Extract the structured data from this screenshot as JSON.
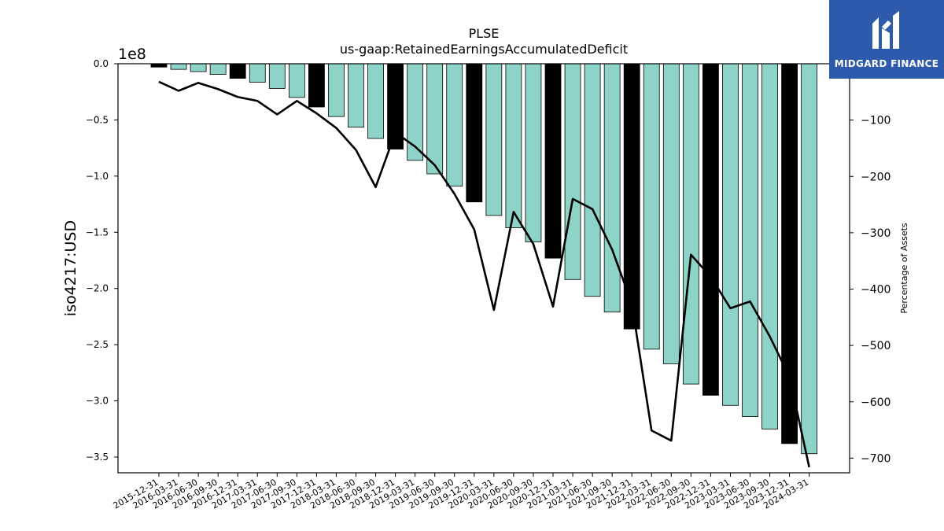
{
  "brand": {
    "name": "MIDGARD FINANCE",
    "bg": "#2e5aab"
  },
  "chart_data": {
    "type": "bar",
    "title": "PLSE",
    "subtitle": "us-gaap:RetainedEarningsAccumulatedDeficit",
    "ylabel": "iso4217:USD",
    "y2label": "Percentage of Assets",
    "y_offset_label": "1e8",
    "ylim": [
      -3.64,
      0
    ],
    "y2lim": [
      -726,
      0
    ],
    "yticks": [
      0.0,
      -0.5,
      -1.0,
      -1.5,
      -2.0,
      -2.5,
      -3.0,
      -3.5
    ],
    "ytick_labels": [
      "0.0",
      "−0.5",
      "−1.0",
      "−1.5",
      "−2.0",
      "−2.5",
      "−3.0",
      "−3.5"
    ],
    "y2ticks": [
      -100,
      -200,
      -300,
      -400,
      -500,
      -600,
      -700
    ],
    "y2tick_labels": [
      "−100",
      "−200",
      "−300",
      "−400",
      "−500",
      "−600",
      "−700"
    ],
    "categories": [
      "2015-12-31",
      "2016-03-31",
      "2016-06-30",
      "2016-09-30",
      "2016-12-31",
      "2017-03-31",
      "2017-06-30",
      "2017-09-30",
      "2017-12-31",
      "2018-03-31",
      "2018-06-30",
      "2018-09-30",
      "2018-12-31",
      "2019-03-31",
      "2019-06-30",
      "2019-09-30",
      "2019-12-31",
      "2020-03-31",
      "2020-06-30",
      "2020-09-30",
      "2020-12-31",
      "2021-03-31",
      "2021-06-30",
      "2021-09-30",
      "2021-12-31",
      "2022-03-31",
      "2022-06-30",
      "2022-09-30",
      "2022-12-31",
      "2023-03-31",
      "2023-06-30",
      "2023-09-30",
      "2023-12-31",
      "2024-03-31"
    ],
    "series": [
      {
        "role": "bars",
        "axis": "left",
        "values": [
          -0.03,
          -0.05,
          -0.07,
          -0.095,
          -0.13,
          -0.165,
          -0.22,
          -0.3,
          -0.385,
          -0.47,
          -0.565,
          -0.665,
          -0.76,
          -0.86,
          -0.98,
          -1.09,
          -1.23,
          -1.35,
          -1.46,
          -1.585,
          -1.73,
          -1.92,
          -2.07,
          -2.21,
          -2.36,
          -2.54,
          -2.67,
          -2.85,
          -2.95,
          -3.04,
          -3.14,
          -3.25,
          -3.38,
          -3.47
        ],
        "year_end_flags": [
          1,
          0,
          0,
          0,
          1,
          0,
          0,
          0,
          1,
          0,
          0,
          0,
          1,
          0,
          0,
          0,
          1,
          0,
          0,
          0,
          1,
          0,
          0,
          0,
          1,
          0,
          0,
          0,
          1,
          0,
          0,
          0,
          1,
          0
        ],
        "color": "#8dd3c7",
        "year_end_color": "#000000"
      },
      {
        "role": "line",
        "axis": "right",
        "values": [
          -32,
          -48,
          -34,
          -45,
          -59,
          -66,
          -90,
          -66,
          -88,
          -114,
          -153,
          -219,
          -122,
          -147,
          -180,
          -231,
          -294,
          -437,
          -263,
          -320,
          -431,
          -240,
          -258,
          -330,
          -426,
          -651,
          -669,
          -339,
          -378,
          -434,
          -422,
          -484,
          -556,
          -716
        ],
        "color": "#000000"
      }
    ]
  }
}
